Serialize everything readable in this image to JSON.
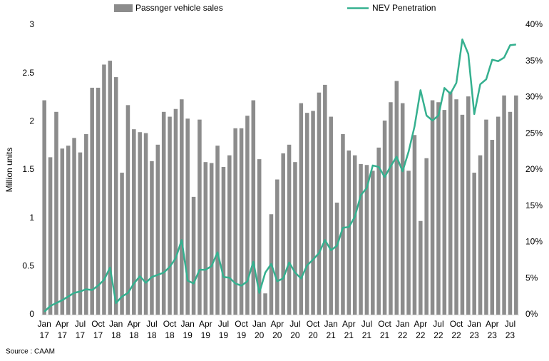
{
  "chart_data": {
    "type": "bar_line",
    "y_label": "Million units",
    "source": "Source : CAAM",
    "categories": [
      [
        "Jan",
        "17"
      ],
      null,
      null,
      [
        "Apr",
        "17"
      ],
      null,
      null,
      [
        "Jul",
        "17"
      ],
      null,
      null,
      [
        "Oct",
        "17"
      ],
      null,
      null,
      [
        "Jan",
        "18"
      ],
      null,
      null,
      [
        "Apr",
        "18"
      ],
      null,
      null,
      [
        "Jul",
        "18"
      ],
      null,
      null,
      [
        "Oct",
        "18"
      ],
      null,
      null,
      [
        "Jan",
        "19"
      ],
      null,
      null,
      [
        "Apr",
        "19"
      ],
      null,
      null,
      [
        "Jul",
        "19"
      ],
      null,
      null,
      [
        "Oct",
        "19"
      ],
      null,
      null,
      [
        "Jan",
        "20"
      ],
      null,
      null,
      [
        "Apr",
        "20"
      ],
      null,
      null,
      [
        "Jul",
        "20"
      ],
      null,
      null,
      [
        "Oct",
        "20"
      ],
      null,
      null,
      [
        "Jan",
        "21"
      ],
      null,
      null,
      [
        "Apr",
        "21"
      ],
      null,
      null,
      [
        "Jul",
        "21"
      ],
      null,
      null,
      [
        "Oct",
        "21"
      ],
      null,
      null,
      [
        "Jan",
        "22"
      ],
      null,
      null,
      [
        "Apr",
        "22"
      ],
      null,
      null,
      [
        "Jul",
        "22"
      ],
      null,
      null,
      [
        "Oct",
        "22"
      ],
      null,
      null,
      [
        "Jan",
        "23"
      ],
      null,
      null,
      [
        "Apr",
        "23"
      ],
      null,
      null,
      [
        "Jul",
        "23"
      ],
      null
    ],
    "series": [
      {
        "name": "Passnger vehicle sales",
        "kind": "bar",
        "color": "#8c8c8c",
        "values": [
          2.22,
          1.63,
          2.1,
          1.72,
          1.75,
          1.83,
          1.68,
          1.87,
          2.35,
          2.35,
          2.59,
          2.63,
          2.46,
          1.47,
          2.17,
          1.92,
          1.89,
          1.88,
          1.59,
          1.76,
          2.1,
          2.05,
          2.13,
          2.23,
          2.03,
          1.22,
          2.02,
          1.58,
          1.57,
          1.75,
          1.53,
          1.65,
          1.93,
          1.93,
          2.06,
          2.22,
          1.61,
          0.22,
          1.04,
          1.4,
          1.67,
          1.76,
          1.58,
          2.19,
          2.09,
          2.11,
          2.3,
          2.38,
          2.05,
          1.16,
          1.87,
          1.7,
          1.65,
          1.56,
          1.55,
          1.49,
          1.73,
          2.01,
          2.2,
          2.42,
          2.19,
          1.49,
          1.86,
          0.97,
          1.62,
          2.22,
          2.2,
          2.12,
          2.31,
          2.23,
          2.07,
          2.26,
          1.47,
          1.65,
          2.02,
          1.81,
          2.05,
          2.27,
          2.1,
          2.27
        ]
      },
      {
        "name": "NEV Penetration",
        "kind": "line",
        "axis": "y2",
        "color": "#35b08f",
        "values": [
          0.4,
          1.2,
          1.6,
          2.0,
          2.5,
          3.0,
          3.2,
          3.5,
          3.4,
          4.0,
          4.8,
          6.5,
          1.6,
          2.5,
          3.0,
          4.3,
          5.3,
          4.4,
          5.2,
          5.5,
          5.8,
          6.6,
          7.8,
          10.3,
          4.7,
          4.3,
          6.2,
          6.2,
          6.7,
          8.6,
          5.2,
          5.1,
          4.3,
          4.0,
          4.6,
          7.3,
          3.0,
          5.8,
          7.0,
          4.6,
          5.0,
          7.2,
          5.8,
          5.0,
          6.8,
          7.6,
          8.5,
          10.3,
          8.9,
          9.5,
          12.0,
          12.1,
          13.5,
          16.5,
          17.5,
          20.6,
          20.4,
          19.0,
          20.5,
          21.8,
          19.8,
          22.5,
          26.0,
          31.0,
          27.5,
          26.8,
          27.5,
          31.3,
          30.5,
          32.0,
          38.0,
          36.0,
          27.7,
          31.8,
          32.5,
          35.2,
          35.0,
          35.5,
          37.2,
          37.3
        ]
      }
    ],
    "ylim": [
      0,
      3
    ],
    "yticks": [
      0,
      0.5,
      1,
      1.5,
      2,
      2.5,
      3
    ],
    "y2lim": [
      0,
      40
    ],
    "y2ticks": [
      {
        "value": 0,
        "label": "0%"
      },
      {
        "value": 5,
        "label": "5%"
      },
      {
        "value": 10,
        "label": "10%"
      },
      {
        "value": 15,
        "label": "15%"
      },
      {
        "value": 20,
        "label": "20%"
      },
      {
        "value": 25,
        "label": "25%"
      },
      {
        "value": 30,
        "label": "30%"
      },
      {
        "value": 35,
        "label": "35%"
      },
      {
        "value": 40,
        "label": "40%"
      }
    ],
    "grid": false,
    "legend": "top"
  }
}
